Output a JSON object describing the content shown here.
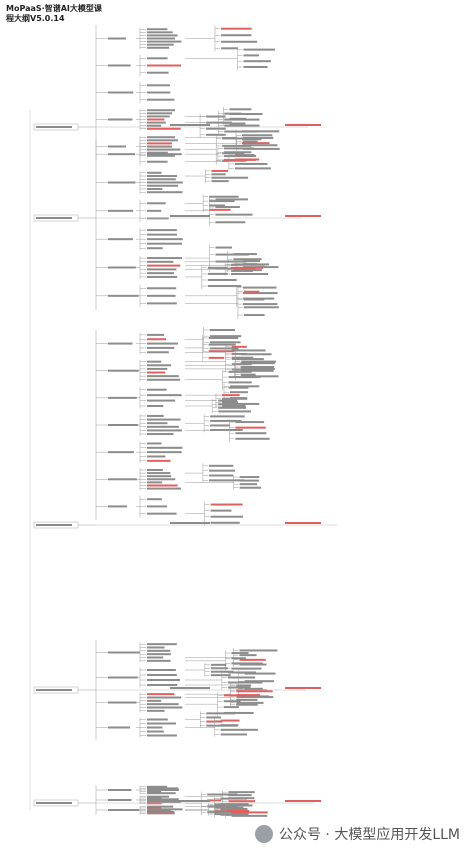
{
  "header": {
    "title_line1": "MoPaaS·智谱AI大模型课",
    "title_line2": "程大纲V5.0.14"
  },
  "watermark": "公众号 · 大模型应用开发LLM"
}
